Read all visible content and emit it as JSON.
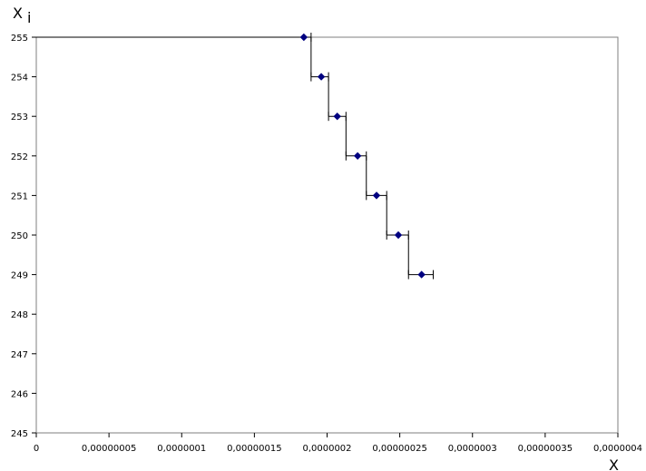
{
  "chart_data": {
    "type": "scatter",
    "title": "",
    "xlabel": "X",
    "ylabel": "X",
    "ylabel_subscript": "i",
    "xlim": [
      0,
      4e-07
    ],
    "ylim": [
      245,
      255
    ],
    "x_ticks": [
      0,
      5e-08,
      1e-07,
      1.5e-07,
      2e-07,
      2.5e-07,
      3e-07,
      3.5e-07,
      4e-07
    ],
    "x_tick_labels": [
      "0",
      "0,00000005",
      "0,0000001",
      "0,00000015",
      "0,0000002",
      "0,00000025",
      "0,0000003",
      "0,00000035",
      "0,0000004"
    ],
    "y_ticks": [
      245,
      246,
      247,
      248,
      249,
      250,
      251,
      252,
      253,
      254,
      255
    ],
    "y_tick_labels": [
      "245",
      "246",
      "247",
      "248",
      "249",
      "250",
      "251",
      "252",
      "253",
      "254",
      "255"
    ],
    "grid": false,
    "marker_color": "#000080",
    "line_color": "#000000",
    "points": [
      {
        "x": 1.84e-07,
        "y": 255,
        "x_low": 0,
        "x_high": 1.89e-07
      },
      {
        "x": 1.96e-07,
        "y": 254,
        "x_low": 1.89e-07,
        "x_high": 2.01e-07
      },
      {
        "x": 2.07e-07,
        "y": 253,
        "x_low": 2.01e-07,
        "x_high": 2.13e-07
      },
      {
        "x": 2.21e-07,
        "y": 252,
        "x_low": 2.13e-07,
        "x_high": 2.27e-07
      },
      {
        "x": 2.34e-07,
        "y": 251,
        "x_low": 2.27e-07,
        "x_high": 2.41e-07
      },
      {
        "x": 2.49e-07,
        "y": 250,
        "x_low": 2.41e-07,
        "x_high": 2.56e-07
      },
      {
        "x": 2.65e-07,
        "y": 249,
        "x_low": 2.56e-07,
        "x_high": 2.73e-07
      }
    ]
  }
}
